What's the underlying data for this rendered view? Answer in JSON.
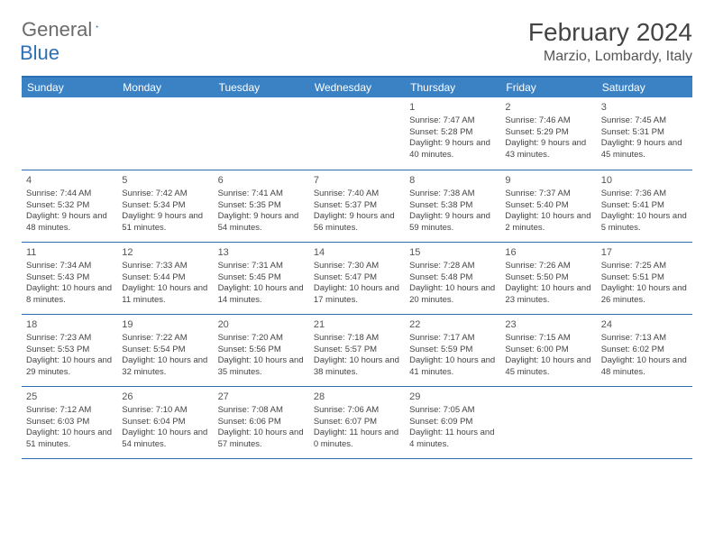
{
  "logo": {
    "word1": "General",
    "word2": "Blue"
  },
  "title": "February 2024",
  "location": "Marzio, Lombardy, Italy",
  "colors": {
    "header_bg": "#3b82c4",
    "header_text": "#ffffff",
    "border": "#2b6fb5",
    "body_text": "#444444",
    "logo_gray": "#6b6b6b",
    "logo_blue": "#2b6fb5",
    "background": "#ffffff"
  },
  "weekdays": [
    "Sunday",
    "Monday",
    "Tuesday",
    "Wednesday",
    "Thursday",
    "Friday",
    "Saturday"
  ],
  "leading_blanks": 4,
  "days": [
    {
      "n": "1",
      "sunrise": "7:47 AM",
      "sunset": "5:28 PM",
      "daylight": "9 hours and 40 minutes."
    },
    {
      "n": "2",
      "sunrise": "7:46 AM",
      "sunset": "5:29 PM",
      "daylight": "9 hours and 43 minutes."
    },
    {
      "n": "3",
      "sunrise": "7:45 AM",
      "sunset": "5:31 PM",
      "daylight": "9 hours and 45 minutes."
    },
    {
      "n": "4",
      "sunrise": "7:44 AM",
      "sunset": "5:32 PM",
      "daylight": "9 hours and 48 minutes."
    },
    {
      "n": "5",
      "sunrise": "7:42 AM",
      "sunset": "5:34 PM",
      "daylight": "9 hours and 51 minutes."
    },
    {
      "n": "6",
      "sunrise": "7:41 AM",
      "sunset": "5:35 PM",
      "daylight": "9 hours and 54 minutes."
    },
    {
      "n": "7",
      "sunrise": "7:40 AM",
      "sunset": "5:37 PM",
      "daylight": "9 hours and 56 minutes."
    },
    {
      "n": "8",
      "sunrise": "7:38 AM",
      "sunset": "5:38 PM",
      "daylight": "9 hours and 59 minutes."
    },
    {
      "n": "9",
      "sunrise": "7:37 AM",
      "sunset": "5:40 PM",
      "daylight": "10 hours and 2 minutes."
    },
    {
      "n": "10",
      "sunrise": "7:36 AM",
      "sunset": "5:41 PM",
      "daylight": "10 hours and 5 minutes."
    },
    {
      "n": "11",
      "sunrise": "7:34 AM",
      "sunset": "5:43 PM",
      "daylight": "10 hours and 8 minutes."
    },
    {
      "n": "12",
      "sunrise": "7:33 AM",
      "sunset": "5:44 PM",
      "daylight": "10 hours and 11 minutes."
    },
    {
      "n": "13",
      "sunrise": "7:31 AM",
      "sunset": "5:45 PM",
      "daylight": "10 hours and 14 minutes."
    },
    {
      "n": "14",
      "sunrise": "7:30 AM",
      "sunset": "5:47 PM",
      "daylight": "10 hours and 17 minutes."
    },
    {
      "n": "15",
      "sunrise": "7:28 AM",
      "sunset": "5:48 PM",
      "daylight": "10 hours and 20 minutes."
    },
    {
      "n": "16",
      "sunrise": "7:26 AM",
      "sunset": "5:50 PM",
      "daylight": "10 hours and 23 minutes."
    },
    {
      "n": "17",
      "sunrise": "7:25 AM",
      "sunset": "5:51 PM",
      "daylight": "10 hours and 26 minutes."
    },
    {
      "n": "18",
      "sunrise": "7:23 AM",
      "sunset": "5:53 PM",
      "daylight": "10 hours and 29 minutes."
    },
    {
      "n": "19",
      "sunrise": "7:22 AM",
      "sunset": "5:54 PM",
      "daylight": "10 hours and 32 minutes."
    },
    {
      "n": "20",
      "sunrise": "7:20 AM",
      "sunset": "5:56 PM",
      "daylight": "10 hours and 35 minutes."
    },
    {
      "n": "21",
      "sunrise": "7:18 AM",
      "sunset": "5:57 PM",
      "daylight": "10 hours and 38 minutes."
    },
    {
      "n": "22",
      "sunrise": "7:17 AM",
      "sunset": "5:59 PM",
      "daylight": "10 hours and 41 minutes."
    },
    {
      "n": "23",
      "sunrise": "7:15 AM",
      "sunset": "6:00 PM",
      "daylight": "10 hours and 45 minutes."
    },
    {
      "n": "24",
      "sunrise": "7:13 AM",
      "sunset": "6:02 PM",
      "daylight": "10 hours and 48 minutes."
    },
    {
      "n": "25",
      "sunrise": "7:12 AM",
      "sunset": "6:03 PM",
      "daylight": "10 hours and 51 minutes."
    },
    {
      "n": "26",
      "sunrise": "7:10 AM",
      "sunset": "6:04 PM",
      "daylight": "10 hours and 54 minutes."
    },
    {
      "n": "27",
      "sunrise": "7:08 AM",
      "sunset": "6:06 PM",
      "daylight": "10 hours and 57 minutes."
    },
    {
      "n": "28",
      "sunrise": "7:06 AM",
      "sunset": "6:07 PM",
      "daylight": "11 hours and 0 minutes."
    },
    {
      "n": "29",
      "sunrise": "7:05 AM",
      "sunset": "6:09 PM",
      "daylight": "11 hours and 4 minutes."
    }
  ],
  "labels": {
    "sunrise": "Sunrise: ",
    "sunset": "Sunset: ",
    "daylight": "Daylight: "
  }
}
